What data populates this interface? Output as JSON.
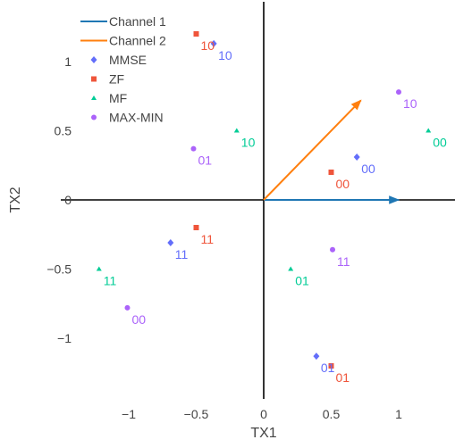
{
  "chart_data": {
    "type": "scatter",
    "xlabel": "TX1",
    "ylabel": "TX2",
    "xlim": [
      -1.35,
      1.45
    ],
    "ylim": [
      -1.42,
      1.45
    ],
    "grid": false,
    "legend_position": "top-left",
    "x_ticks": [
      {
        "value": -1,
        "label": "−1"
      },
      {
        "value": -0.5,
        "label": "−0.5"
      },
      {
        "value": 0,
        "label": "0"
      },
      {
        "value": 0.5,
        "label": "0.5"
      },
      {
        "value": 1,
        "label": "1"
      }
    ],
    "y_ticks": [
      {
        "value": 1,
        "label": "1"
      },
      {
        "value": 0.5,
        "label": "0.5"
      },
      {
        "value": 0,
        "label": "0"
      },
      {
        "value": -0.5,
        "label": "−0.5"
      },
      {
        "value": -1,
        "label": "−1"
      }
    ],
    "vectors": [
      {
        "name": "Channel 1",
        "color": "#1f77b4",
        "from": [
          0,
          0
        ],
        "to": [
          1.0,
          0.0
        ]
      },
      {
        "name": "Channel 2",
        "color": "#ff7f0e",
        "from": [
          0,
          0
        ],
        "to": [
          0.72,
          0.72
        ]
      }
    ],
    "series": [
      {
        "name": "MMSE",
        "marker": "diamond",
        "color": "#636efa",
        "points": [
          {
            "x": -0.37,
            "y": 1.13,
            "label": "10"
          },
          {
            "x": 0.69,
            "y": 0.31,
            "label": "00"
          },
          {
            "x": -0.69,
            "y": -0.31,
            "label": "11"
          },
          {
            "x": 0.39,
            "y": -1.13,
            "label": "01"
          }
        ]
      },
      {
        "name": "ZF",
        "marker": "square",
        "color": "#ef553b",
        "points": [
          {
            "x": -0.5,
            "y": 1.2,
            "label": "10"
          },
          {
            "x": 0.5,
            "y": 0.2,
            "label": "00"
          },
          {
            "x": -0.5,
            "y": -0.2,
            "label": "11"
          },
          {
            "x": 0.5,
            "y": -1.2,
            "label": "01"
          }
        ]
      },
      {
        "name": "MF",
        "marker": "triangle-up",
        "color": "#00cc96",
        "points": [
          {
            "x": -0.2,
            "y": 0.5,
            "label": "10"
          },
          {
            "x": 1.22,
            "y": 0.5,
            "label": "00"
          },
          {
            "x": -1.22,
            "y": -0.5,
            "label": "11"
          },
          {
            "x": 0.2,
            "y": -0.5,
            "label": "01"
          }
        ]
      },
      {
        "name": "MAX-MIN",
        "marker": "circle",
        "color": "#ab63fa",
        "points": [
          {
            "x": 1.0,
            "y": 0.78,
            "label": "10"
          },
          {
            "x": -0.52,
            "y": 0.37,
            "label": "01"
          },
          {
            "x": 0.51,
            "y": -0.36,
            "label": "11"
          },
          {
            "x": -1.01,
            "y": -0.78,
            "label": "00"
          }
        ]
      }
    ]
  }
}
